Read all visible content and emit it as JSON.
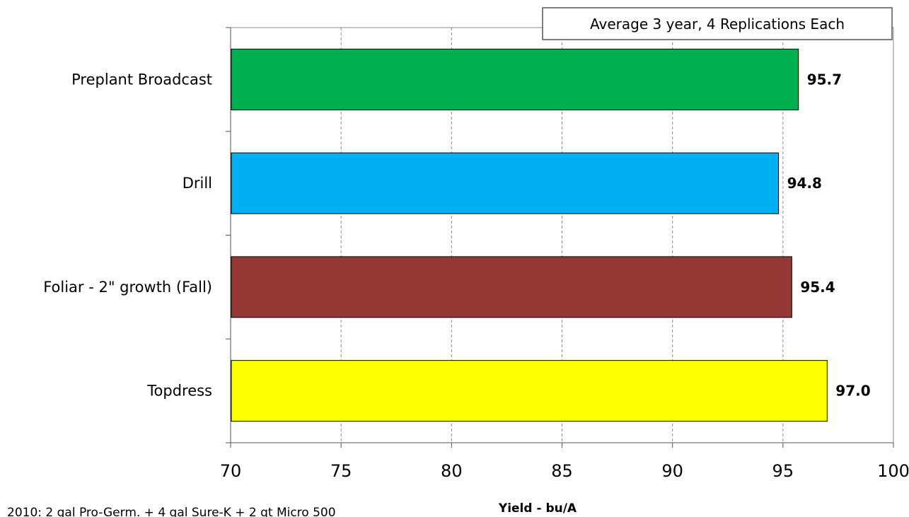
{
  "chart_data": {
    "type": "bar",
    "orientation": "horizontal",
    "categories": [
      "Preplant Broadcast",
      "Drill",
      "Foliar - 2\" growth (Fall)",
      "Topdress"
    ],
    "values": [
      95.7,
      94.8,
      95.4,
      97.0
    ],
    "value_labels": [
      "95.7",
      "94.8",
      "95.4",
      "97.0"
    ],
    "bar_colors": [
      "#00b050",
      "#00b0f0",
      "#953735",
      "#ffff00"
    ],
    "xlabel": "Yield - bu/A",
    "ylabel": "",
    "xlim": [
      70,
      100
    ],
    "x_ticks": [
      70,
      75,
      80,
      85,
      90,
      95,
      100
    ],
    "x_tick_labels": [
      "70",
      "75",
      "80",
      "85",
      "90",
      "95",
      "100"
    ],
    "grid": "vertical dashed",
    "annotation": "Average 3 year,  4 Replications Each",
    "annotation_position": "top-right",
    "footnote": "2010: 2 gal Pro-Germ. + 4 gal Sure-K + 2 qt Micro 500"
  }
}
